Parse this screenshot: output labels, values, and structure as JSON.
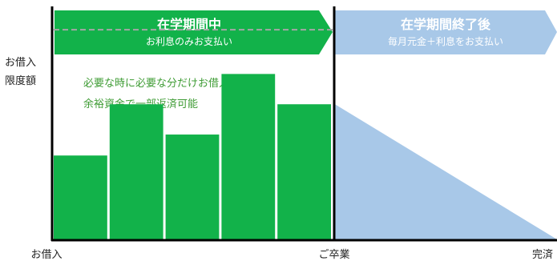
{
  "chart_data": {
    "type": "bar",
    "phases": {
      "in_school": {
        "title": "在学期間中",
        "subtitle": "お利息のみお支払い",
        "color": "#12b24a"
      },
      "after_graduation": {
        "title": "在学期間終了後",
        "subtitle": "毎月元金＋利息をお支払い",
        "color": "#a8c8e8"
      }
    },
    "limit_label_line1": "お借入",
    "limit_label_line2": "限度額",
    "notes": [
      "必要な時に必要な分だけお借入",
      "余裕資金で一部返済可能"
    ],
    "note_color": "#3f9c35",
    "bar_values": [
      0.36,
      0.58,
      0.45,
      0.71,
      0.58
    ],
    "limit_level": 0.9,
    "repayment_start_level": 0.58,
    "x_axis": {
      "start": "お借入",
      "middle": "ご卒業",
      "end": "完済"
    }
  }
}
